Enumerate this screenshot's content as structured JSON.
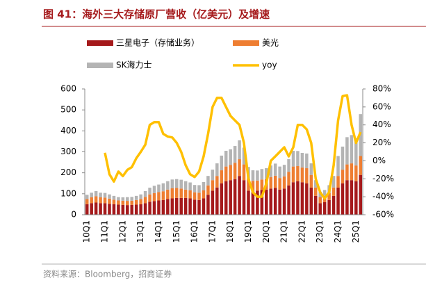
{
  "chart_data": {
    "type": "stacked-bar-line",
    "title": "图 41：海外三大存储原厂营收（亿美元）及增速",
    "source": "资料来源：Bloomberg，招商证券",
    "categories": [
      "10Q1",
      null,
      null,
      null,
      "11Q1",
      null,
      null,
      null,
      "12Q1",
      null,
      null,
      null,
      "13Q1",
      null,
      null,
      null,
      "14Q1",
      null,
      null,
      null,
      "15Q1",
      null,
      null,
      null,
      "16Q1",
      null,
      null,
      null,
      "17Q1",
      null,
      null,
      null,
      "18Q1",
      null,
      null,
      null,
      "19Q1",
      null,
      null,
      null,
      "20Q1",
      null,
      null,
      null,
      "21Q1",
      null,
      null,
      null,
      "22Q1",
      null,
      null,
      null,
      "23Q1",
      null,
      null,
      null,
      "24Q1",
      null,
      null,
      null,
      "25Q1",
      null
    ],
    "series": [
      {
        "name": "三星电子（存储业务）",
        "color": "#a5191b",
        "values": [
          50,
          55,
          58,
          55,
          55,
          52,
          50,
          48,
          47,
          46,
          47,
          48,
          50,
          55,
          62,
          65,
          68,
          70,
          75,
          78,
          80,
          80,
          80,
          78,
          72,
          70,
          78,
          95,
          115,
          130,
          150,
          160,
          165,
          170,
          185,
          165,
          115,
          110,
          115,
          118,
          120,
          125,
          128,
          120,
          125,
          140,
          155,
          160,
          155,
          150,
          130,
          90,
          55,
          60,
          70,
          90,
          130,
          150,
          165,
          165,
          160,
          190
        ]
      },
      {
        "name": "美光",
        "color": "#ee7e32",
        "values": [
          25,
          28,
          30,
          28,
          27,
          25,
          22,
          20,
          20,
          20,
          20,
          22,
          25,
          30,
          35,
          38,
          40,
          42,
          45,
          48,
          48,
          45,
          40,
          38,
          35,
          35,
          38,
          45,
          50,
          55,
          62,
          70,
          72,
          78,
          80,
          75,
          58,
          52,
          48,
          50,
          50,
          55,
          58,
          55,
          58,
          65,
          75,
          72,
          70,
          72,
          60,
          40,
          30,
          30,
          33,
          40,
          55,
          65,
          75,
          80,
          75,
          90
        ]
      },
      {
        "name": "SK海力士",
        "color": "#b4b4b4",
        "values": [
          20,
          22,
          25,
          22,
          22,
          20,
          18,
          16,
          16,
          18,
          18,
          20,
          22,
          28,
          32,
          35,
          36,
          38,
          40,
          42,
          42,
          42,
          40,
          38,
          35,
          36,
          40,
          45,
          50,
          60,
          70,
          75,
          75,
          80,
          90,
          80,
          55,
          50,
          48,
          50,
          52,
          55,
          58,
          55,
          55,
          60,
          75,
          72,
          70,
          70,
          55,
          35,
          25,
          28,
          38,
          55,
          95,
          110,
          130,
          135,
          130,
          200
        ]
      },
      {
        "name": "yoy",
        "color": "#ffc000",
        "axis": "y2",
        "values": [
          null,
          null,
          null,
          null,
          9,
          -15,
          -23,
          -12,
          -17,
          -10,
          -7,
          3,
          10,
          18,
          40,
          43,
          43,
          30,
          27,
          26,
          20,
          10,
          -5,
          -15,
          -18,
          -12,
          5,
          30,
          60,
          70,
          70,
          60,
          50,
          45,
          40,
          20,
          -20,
          -35,
          -40,
          -40,
          -25,
          0,
          5,
          10,
          15,
          5,
          15,
          40,
          40,
          35,
          20,
          -20,
          -35,
          -42,
          -35,
          -5,
          45,
          72,
          73,
          40,
          20,
          32
        ]
      }
    ],
    "ylim": [
      0,
      600
    ],
    "yticks": [
      0,
      100,
      200,
      300,
      400,
      500,
      600
    ],
    "y2lim": [
      -60,
      80
    ],
    "y2ticks": [
      {
        "value": -60,
        "label": "-60%"
      },
      {
        "value": -40,
        "label": "-40%"
      },
      {
        "value": -20,
        "label": "-20%"
      },
      {
        "value": 0,
        "label": "0%"
      },
      {
        "value": 20,
        "label": "20%"
      },
      {
        "value": 40,
        "label": "40%"
      },
      {
        "value": 60,
        "label": "60%"
      },
      {
        "value": 80,
        "label": "80%"
      }
    ]
  }
}
